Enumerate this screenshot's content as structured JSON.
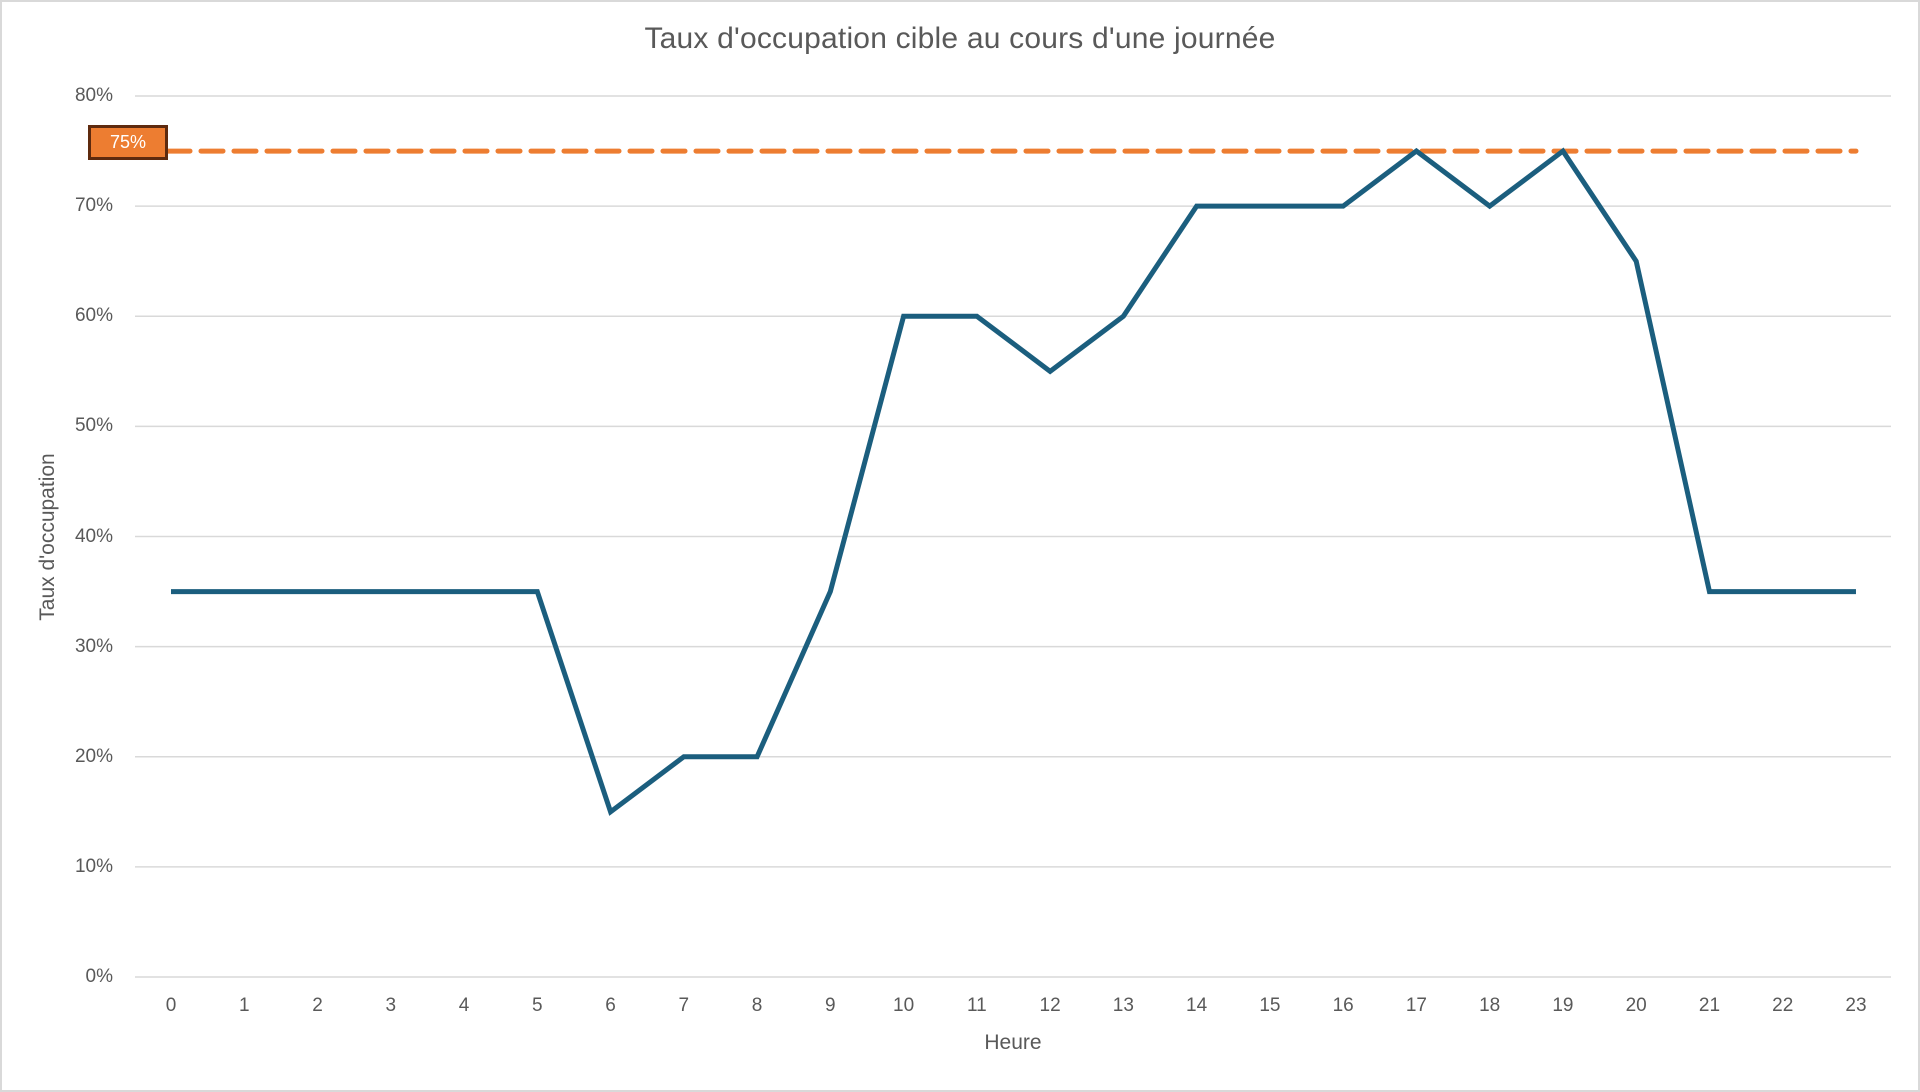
{
  "chart": {
    "title": "Taux d'occupation cible au cours d'une journée",
    "xlabel": "Heure",
    "ylabel": "Taux d'occupation",
    "target_label": "75%",
    "y_ticks": [
      "0%",
      "10%",
      "20%",
      "30%",
      "40%",
      "50%",
      "60%",
      "70%",
      "80%"
    ],
    "x_ticks": [
      "0",
      "1",
      "2",
      "3",
      "4",
      "5",
      "6",
      "7",
      "8",
      "9",
      "10",
      "11",
      "12",
      "13",
      "14",
      "15",
      "16",
      "17",
      "18",
      "19",
      "20",
      "21",
      "22",
      "23"
    ],
    "colors": {
      "series": "#1b5e7e",
      "target": "#ed7d31",
      "target_badge_border": "#5e2a0e",
      "gridline": "#d9d9d9",
      "text": "#595959"
    }
  },
  "chart_data": {
    "type": "line",
    "title": "Taux d'occupation cible au cours d'une journée",
    "xlabel": "Heure",
    "ylabel": "Taux d'occupation",
    "x": [
      0,
      1,
      2,
      3,
      4,
      5,
      6,
      7,
      8,
      9,
      10,
      11,
      12,
      13,
      14,
      15,
      16,
      17,
      18,
      19,
      20,
      21,
      22,
      23
    ],
    "series": [
      {
        "name": "Taux d'occupation",
        "values": [
          0.35,
          0.35,
          0.35,
          0.35,
          0.35,
          0.35,
          0.15,
          0.2,
          0.2,
          0.35,
          0.6,
          0.6,
          0.55,
          0.6,
          0.7,
          0.7,
          0.7,
          0.75,
          0.7,
          0.75,
          0.65,
          0.35,
          0.35,
          0.35
        ]
      },
      {
        "name": "Cible",
        "values": [
          0.75,
          0.75,
          0.75,
          0.75,
          0.75,
          0.75,
          0.75,
          0.75,
          0.75,
          0.75,
          0.75,
          0.75,
          0.75,
          0.75,
          0.75,
          0.75,
          0.75,
          0.75,
          0.75,
          0.75,
          0.75,
          0.75,
          0.75,
          0.75
        ],
        "style": "dashed",
        "annotation": "75%"
      }
    ],
    "ylim": [
      0,
      0.8
    ],
    "y_tick_format": "percent",
    "grid": "horizontal",
    "legend": "none"
  }
}
